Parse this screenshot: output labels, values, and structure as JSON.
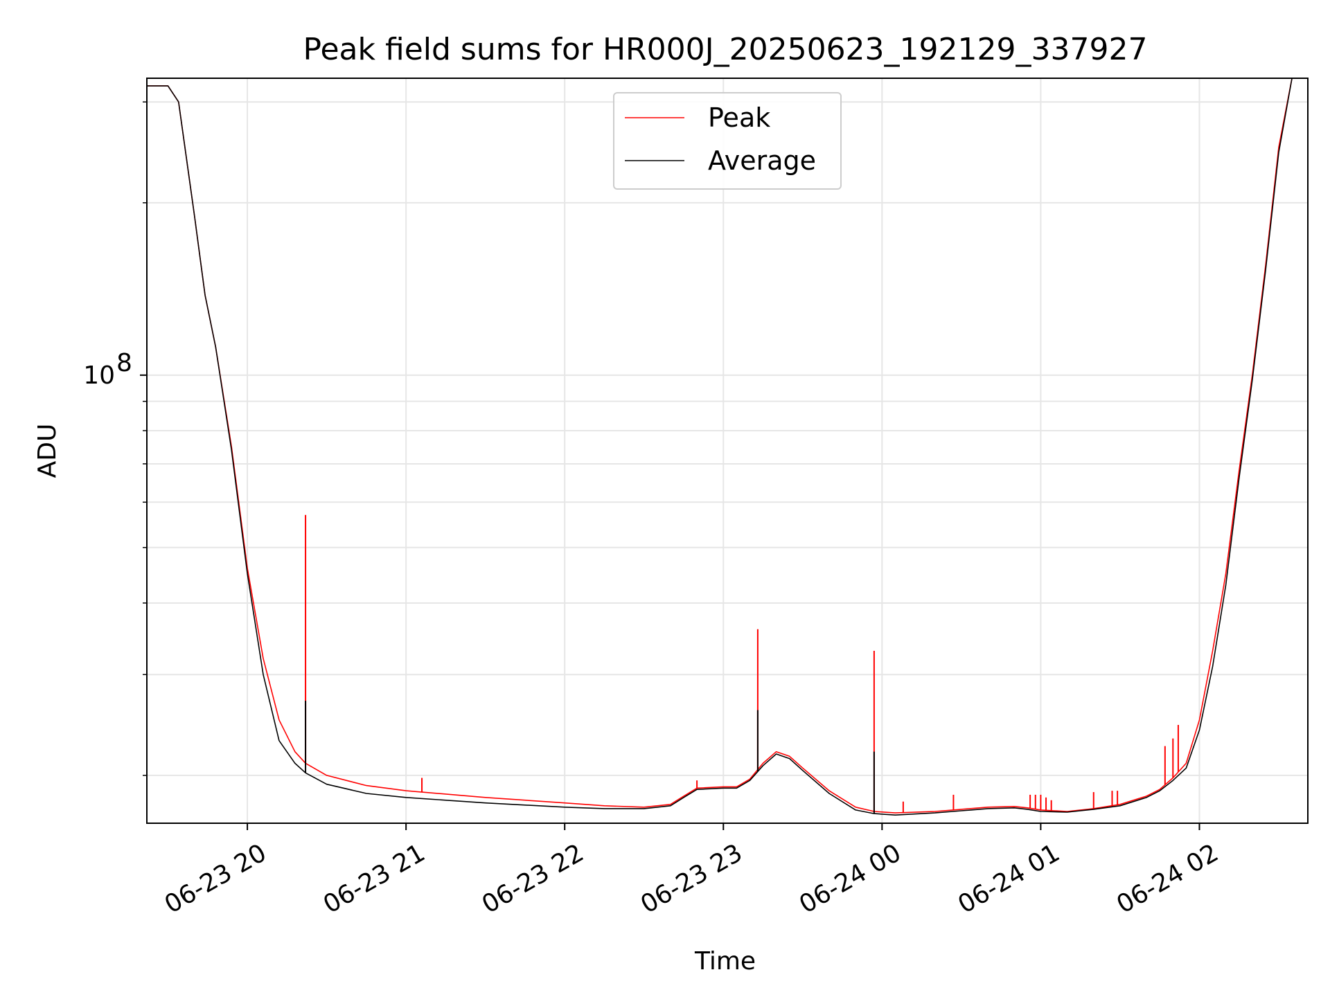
{
  "chart_data": {
    "type": "line",
    "title": "Peak field sums for HR000J_20250623_192129_337927",
    "xlabel": "Time",
    "ylabel": "ADU",
    "yscale": "log",
    "grid": true,
    "legend_position": "top-center",
    "x_ticks": [
      "06-23 20",
      "06-23 21",
      "06-23 22",
      "06-23 23",
      "06-24 00",
      "06-24 01",
      "06-24 02"
    ],
    "x_range": [
      "06-23 19:22",
      "06-24 02:41"
    ],
    "y_range": [
      16500000,
      330000000
    ],
    "y_major_tick": {
      "value": 100000000,
      "label_base": "10",
      "label_exp": "8"
    },
    "y_minor_ticks": [
      20000000,
      30000000,
      40000000,
      50000000,
      60000000,
      70000000,
      80000000,
      90000000,
      200000000,
      300000000
    ],
    "colors": {
      "Peak": "#ff0000",
      "Average": "#000000",
      "grid": "#e6e6e6"
    },
    "series": [
      {
        "name": "Peak",
        "x": [
          "06-23 19:22",
          "06-23 19:30",
          "06-23 19:34",
          "06-23 19:40",
          "06-23 19:44",
          "06-23 19:48",
          "06-23 19:54",
          "06-23 20:00",
          "06-23 20:06",
          "06-23 20:12",
          "06-23 20:18",
          "06-23 20:22",
          "06-23 20:30",
          "06-23 20:45",
          "06-23 21:00",
          "06-23 21:30",
          "06-23 22:00",
          "06-23 22:15",
          "06-23 22:30",
          "06-23 22:40",
          "06-23 22:45",
          "06-23 22:50",
          "06-23 23:00",
          "06-23 23:05",
          "06-23 23:10",
          "06-23 23:15",
          "06-23 23:20",
          "06-23 23:25",
          "06-23 23:30",
          "06-23 23:40",
          "06-23 23:50",
          "06-23 23:57",
          "06-24 00:05",
          "06-24 00:20",
          "06-24 00:30",
          "06-24 00:40",
          "06-24 00:50",
          "06-24 00:55",
          "06-24 01:00",
          "06-24 01:10",
          "06-24 01:20",
          "06-24 01:30",
          "06-24 01:40",
          "06-24 01:45",
          "06-24 01:50",
          "06-24 01:55",
          "06-24 02:00",
          "06-24 02:05",
          "06-24 02:10",
          "06-24 02:15",
          "06-24 02:20",
          "06-24 02:25",
          "06-24 02:30",
          "06-24 02:35",
          "06-24 02:41"
        ],
        "y": [
          320000000,
          320000000,
          300000000,
          190000000,
          138000000,
          112000000,
          75000000,
          46000000,
          32000000,
          25000000,
          22000000,
          21000000,
          20000000,
          19200000,
          18800000,
          18300000,
          17900000,
          17700000,
          17600000,
          17800000,
          18400000,
          19000000,
          19100000,
          19100000,
          19700000,
          21000000,
          22000000,
          21600000,
          20600000,
          18800000,
          17600000,
          17300000,
          17200000,
          17300000,
          17450000,
          17600000,
          17650000,
          17550000,
          17400000,
          17300000,
          17500000,
          17800000,
          18400000,
          18900000,
          19800000,
          21000000,
          25000000,
          33000000,
          45000000,
          68000000,
          100000000,
          155000000,
          250000000,
          330000000,
          330000000
        ],
        "spikes": [
          {
            "x": "06-23 20:22",
            "y": 57000000
          },
          {
            "x": "06-23 21:06",
            "y": 19800000
          },
          {
            "x": "06-23 22:50",
            "y": 19600000
          },
          {
            "x": "06-23 23:13",
            "y": 36000000
          },
          {
            "x": "06-23 23:57",
            "y": 33000000
          },
          {
            "x": "06-24 00:08",
            "y": 18000000
          },
          {
            "x": "06-24 00:27",
            "y": 18500000
          },
          {
            "x": "06-24 00:56",
            "y": 18500000
          },
          {
            "x": "06-24 00:58",
            "y": 18500000
          },
          {
            "x": "06-24 01:00",
            "y": 18500000
          },
          {
            "x": "06-24 01:02",
            "y": 18300000
          },
          {
            "x": "06-24 01:04",
            "y": 18100000
          },
          {
            "x": "06-24 01:20",
            "y": 18700000
          },
          {
            "x": "06-24 01:27",
            "y": 18800000
          },
          {
            "x": "06-24 01:29",
            "y": 18800000
          },
          {
            "x": "06-24 01:47",
            "y": 22500000
          },
          {
            "x": "06-24 01:50",
            "y": 23200000
          },
          {
            "x": "06-24 01:52",
            "y": 24500000
          }
        ]
      },
      {
        "name": "Average",
        "x": [
          "06-23 19:22",
          "06-23 19:30",
          "06-23 19:34",
          "06-23 19:40",
          "06-23 19:44",
          "06-23 19:48",
          "06-23 19:54",
          "06-23 20:00",
          "06-23 20:06",
          "06-23 20:12",
          "06-23 20:18",
          "06-23 20:22",
          "06-23 20:30",
          "06-23 20:45",
          "06-23 21:00",
          "06-23 21:30",
          "06-23 22:00",
          "06-23 22:15",
          "06-23 22:30",
          "06-23 22:40",
          "06-23 22:45",
          "06-23 22:50",
          "06-23 23:00",
          "06-23 23:05",
          "06-23 23:10",
          "06-23 23:15",
          "06-23 23:20",
          "06-23 23:25",
          "06-23 23:30",
          "06-23 23:40",
          "06-23 23:50",
          "06-23 23:57",
          "06-24 00:05",
          "06-24 00:20",
          "06-24 00:30",
          "06-24 00:40",
          "06-24 00:50",
          "06-24 00:55",
          "06-24 01:00",
          "06-24 01:10",
          "06-24 01:20",
          "06-24 01:30",
          "06-24 01:40",
          "06-24 01:45",
          "06-24 01:50",
          "06-24 01:55",
          "06-24 02:00",
          "06-24 02:05",
          "06-24 02:10",
          "06-24 02:15",
          "06-24 02:20",
          "06-24 02:25",
          "06-24 02:30",
          "06-24 02:35",
          "06-24 02:41"
        ],
        "y": [
          320000000,
          320000000,
          300000000,
          190000000,
          138000000,
          112000000,
          74000000,
          45000000,
          30000000,
          23000000,
          21000000,
          20200000,
          19300000,
          18600000,
          18300000,
          17900000,
          17600000,
          17500000,
          17500000,
          17700000,
          18300000,
          18900000,
          19000000,
          19000000,
          19600000,
          20800000,
          21800000,
          21400000,
          20400000,
          18600000,
          17400000,
          17150000,
          17050000,
          17200000,
          17350000,
          17500000,
          17550000,
          17450000,
          17300000,
          17250000,
          17450000,
          17700000,
          18300000,
          18800000,
          19600000,
          20600000,
          24000000,
          31000000,
          43000000,
          66000000,
          98000000,
          152000000,
          245000000,
          330000000,
          330000000
        ],
        "spikes": [
          {
            "x": "06-23 20:22",
            "y": 27000000
          },
          {
            "x": "06-23 23:13",
            "y": 26000000
          },
          {
            "x": "06-23 23:57",
            "y": 22000000
          }
        ]
      }
    ]
  }
}
